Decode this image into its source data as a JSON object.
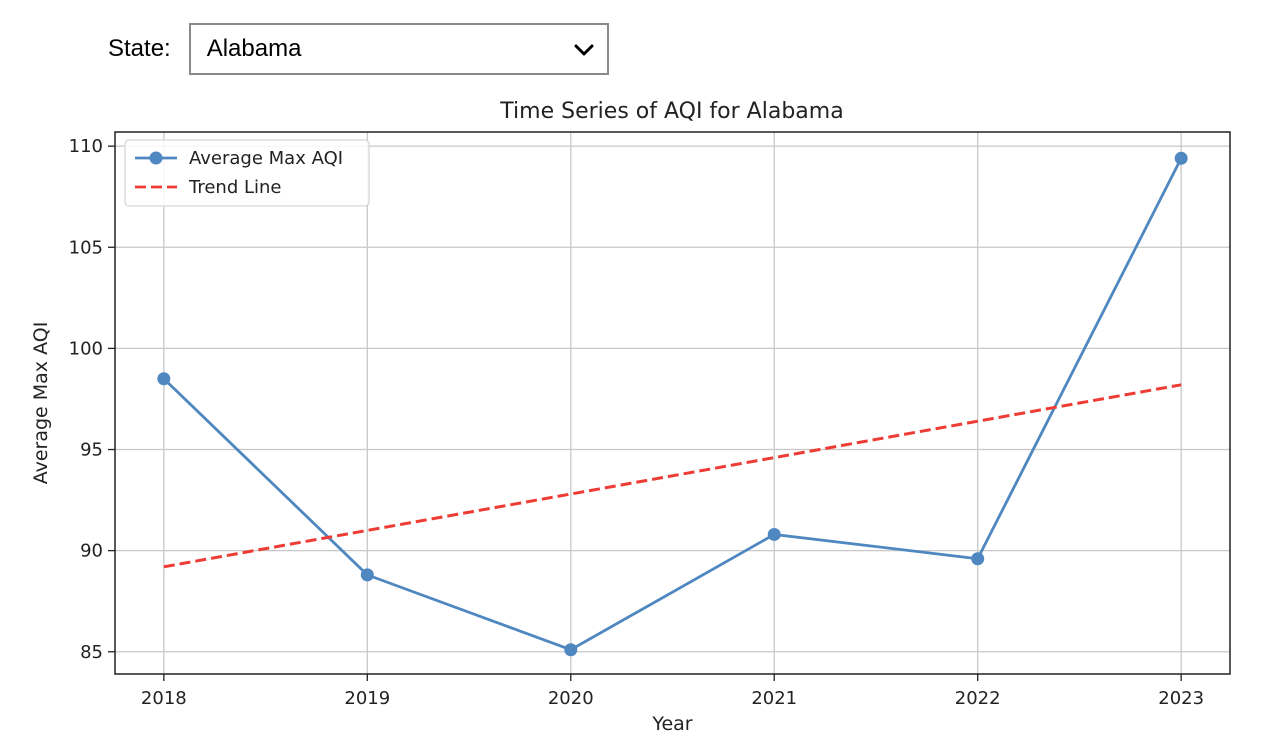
{
  "controls": {
    "state_label": "State:",
    "selected_state": "Alabama"
  },
  "chart_data": {
    "type": "line",
    "title": "Time Series of AQI for Alabama",
    "xlabel": "Year",
    "ylabel": "Average Max AQI",
    "categories": [
      "2018",
      "2019",
      "2020",
      "2021",
      "2022",
      "2023"
    ],
    "x": [
      2018,
      2019,
      2020,
      2021,
      2022,
      2023
    ],
    "xlim": [
      2017.76,
      2023.24
    ],
    "ylim": [
      83.9,
      110.7
    ],
    "yticks": [
      85,
      90,
      95,
      100,
      105,
      110
    ],
    "grid": true,
    "legend_position": "top-left",
    "series": [
      {
        "name": "Average Max AQI",
        "style": "solid",
        "marker": "circle",
        "color": "#4f87c0",
        "values": [
          98.5,
          88.8,
          85.1,
          90.8,
          89.6,
          109.4
        ]
      },
      {
        "name": "Trend Line",
        "style": "dashed",
        "marker": "none",
        "color": "#ee3b33",
        "values": [
          89.2,
          91.0,
          92.8,
          94.6,
          96.4,
          98.2
        ]
      }
    ]
  }
}
